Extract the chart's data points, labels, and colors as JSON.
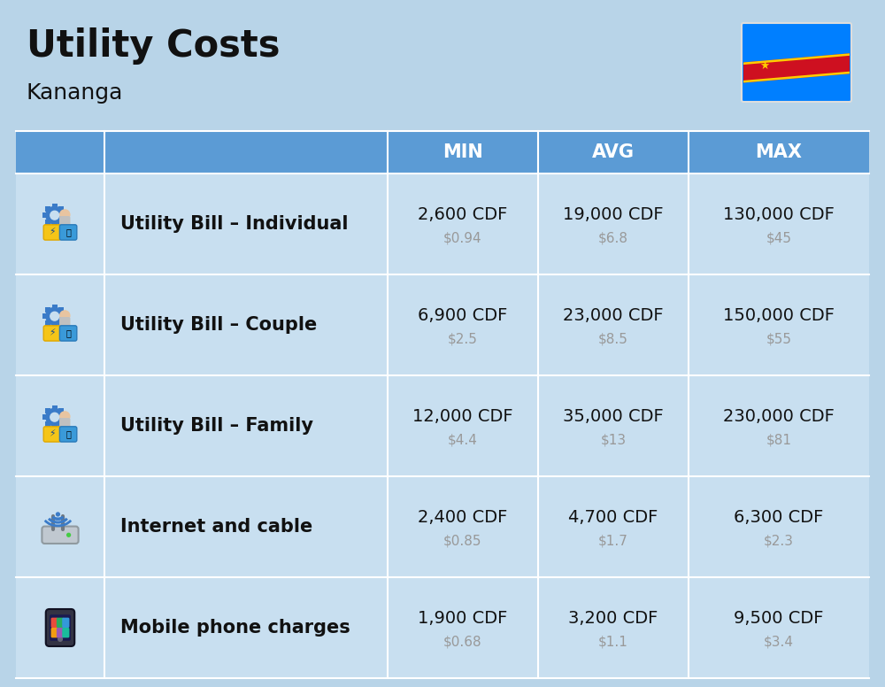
{
  "title": "Utility Costs",
  "subtitle": "Kananga",
  "background_color": "#b8d4e8",
  "header_color": "#5b9bd5",
  "header_text_color": "#ffffff",
  "row_bg_color": "#c8dff0",
  "separator_color": "#ffffff",
  "rows": [
    {
      "label": "Utility Bill – Individual",
      "min_cdf": "2,600 CDF",
      "min_usd": "$0.94",
      "avg_cdf": "19,000 CDF",
      "avg_usd": "$6.8",
      "max_cdf": "130,000 CDF",
      "max_usd": "$45",
      "icon": "utility"
    },
    {
      "label": "Utility Bill – Couple",
      "min_cdf": "6,900 CDF",
      "min_usd": "$2.5",
      "avg_cdf": "23,000 CDF",
      "avg_usd": "$8.5",
      "max_cdf": "150,000 CDF",
      "max_usd": "$55",
      "icon": "utility"
    },
    {
      "label": "Utility Bill – Family",
      "min_cdf": "12,000 CDF",
      "min_usd": "$4.4",
      "avg_cdf": "35,000 CDF",
      "avg_usd": "$13",
      "max_cdf": "230,000 CDF",
      "max_usd": "$81",
      "icon": "utility"
    },
    {
      "label": "Internet and cable",
      "min_cdf": "2,400 CDF",
      "min_usd": "$0.85",
      "avg_cdf": "4,700 CDF",
      "avg_usd": "$1.7",
      "max_cdf": "6,300 CDF",
      "max_usd": "$2.3",
      "icon": "internet"
    },
    {
      "label": "Mobile phone charges",
      "min_cdf": "1,900 CDF",
      "min_usd": "$0.68",
      "avg_cdf": "3,200 CDF",
      "avg_usd": "$1.1",
      "max_cdf": "9,500 CDF",
      "max_usd": "$3.4",
      "icon": "mobile"
    }
  ],
  "primary_text_color": "#111111",
  "secondary_text_color": "#999999",
  "cdf_fontsize": 14,
  "usd_fontsize": 11,
  "label_fontsize": 15,
  "header_fontsize": 15,
  "title_fontsize": 30,
  "subtitle_fontsize": 18
}
